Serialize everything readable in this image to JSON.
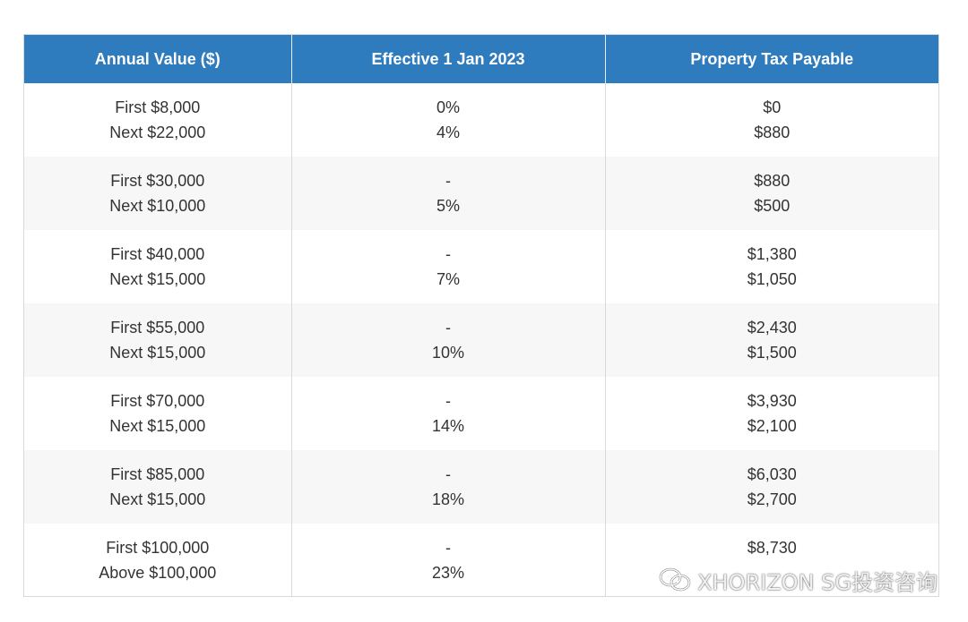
{
  "table": {
    "headers": [
      "Annual Value ($)",
      "Effective 1 Jan 2023",
      "Property Tax Payable"
    ],
    "rows": [
      {
        "value": [
          "First $8,000",
          "Next $22,000"
        ],
        "rate": [
          "0%",
          "4%"
        ],
        "tax": [
          "$0",
          "$880"
        ]
      },
      {
        "value": [
          "First $30,000",
          "Next $10,000"
        ],
        "rate": [
          "-",
          "5%"
        ],
        "tax": [
          "$880",
          "$500"
        ]
      },
      {
        "value": [
          "First $40,000",
          "Next $15,000"
        ],
        "rate": [
          "-",
          "7%"
        ],
        "tax": [
          "$1,380",
          "$1,050"
        ]
      },
      {
        "value": [
          "First $55,000",
          "Next $15,000"
        ],
        "rate": [
          "-",
          "10%"
        ],
        "tax": [
          "$2,430",
          "$1,500"
        ]
      },
      {
        "value": [
          "First $70,000",
          "Next $15,000"
        ],
        "rate": [
          "-",
          "14%"
        ],
        "tax": [
          "$3,930",
          "$2,100"
        ]
      },
      {
        "value": [
          "First $85,000",
          "Next $15,000"
        ],
        "rate": [
          "-",
          "18%"
        ],
        "tax": [
          "$6,030",
          "$2,700"
        ]
      },
      {
        "value": [
          "First $100,000",
          "Above $100,000"
        ],
        "rate": [
          "-",
          "23%"
        ],
        "tax": [
          "$8,730",
          ""
        ]
      }
    ]
  },
  "watermark": {
    "icon": "wechat-icon",
    "text": "XHORIZON SG投资咨询"
  },
  "colors": {
    "header_bg": "#2e7bbd",
    "header_text": "#ffffff",
    "row_alt_bg": "#f7f7f7",
    "border": "#d9d9d9",
    "body_text": "#333333"
  }
}
